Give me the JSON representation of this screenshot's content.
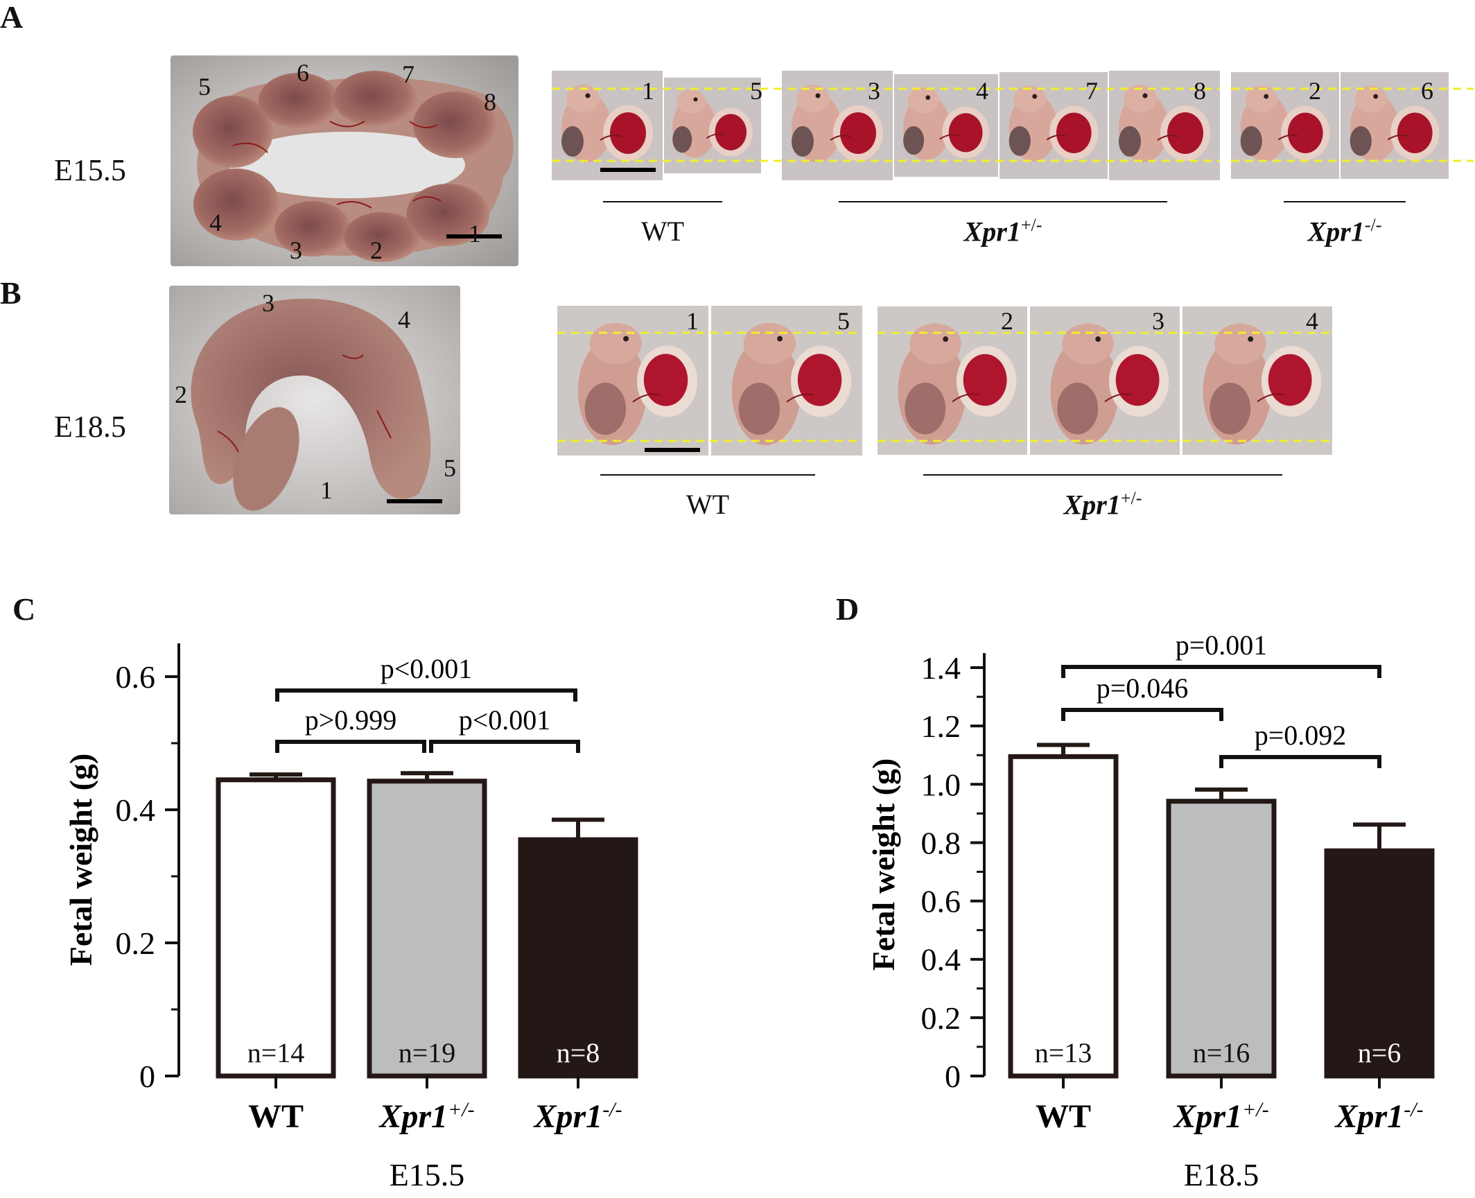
{
  "panelA": {
    "letter": "A",
    "stage": "E15.5",
    "uterus_labels": [
      "5",
      "6",
      "7",
      "8",
      "4",
      "3",
      "2",
      "1"
    ],
    "embryos": [
      "1",
      "5",
      "3",
      "4",
      "7",
      "8",
      "2",
      "6"
    ],
    "groups": [
      {
        "gene": "WT",
        "sup": ""
      },
      {
        "gene": "Xpr1",
        "sup": "+/-"
      },
      {
        "gene": "Xpr1",
        "sup": "-/-"
      }
    ]
  },
  "panelB": {
    "letter": "B",
    "stage": "E18.5",
    "uterus_labels": [
      "3",
      "4",
      "2",
      "1",
      "5"
    ],
    "embryos": [
      "1",
      "5",
      "2",
      "3",
      "4"
    ],
    "groups": [
      {
        "gene": "WT",
        "sup": ""
      },
      {
        "gene": "Xpr1",
        "sup": "+/-"
      }
    ]
  },
  "chart_data": [
    {
      "panel": "C",
      "type": "bar",
      "ylabel": "Fetal weight (g)",
      "xlabel": "E15.5",
      "categories": [
        "WT",
        "Xpr1+/-",
        "Xpr1-/-"
      ],
      "category_parts": [
        {
          "main": "WT",
          "sup": ""
        },
        {
          "main": "Xpr1",
          "sup": "+/-"
        },
        {
          "main": "Xpr1",
          "sup": "-/-"
        }
      ],
      "values": [
        0.445,
        0.443,
        0.355
      ],
      "errors": [
        0.008,
        0.012,
        0.03
      ],
      "n_labels": [
        "n=14",
        "n=19",
        "n=8"
      ],
      "fills": [
        "#ffffff",
        "#bcbdbf",
        "#231815"
      ],
      "ylim": [
        0,
        0.65
      ],
      "yticks": [
        0,
        0.2,
        0.4,
        0.6
      ],
      "ytick_labels": [
        "0",
        "0.2",
        "0.4",
        "0.6"
      ],
      "comparisons": [
        {
          "from": 0,
          "to": 1,
          "label": "p>0.999"
        },
        {
          "from": 1,
          "to": 2,
          "label": "p<0.001"
        },
        {
          "from": 0,
          "to": 2,
          "label": "p<0.001"
        }
      ]
    },
    {
      "panel": "D",
      "type": "bar",
      "ylabel": "Fetal weight (g)",
      "xlabel": "E18.5",
      "categories": [
        "WT",
        "Xpr1+/-",
        "Xpr1-/-"
      ],
      "category_parts": [
        {
          "main": "WT",
          "sup": ""
        },
        {
          "main": "Xpr1",
          "sup": "+/-"
        },
        {
          "main": "Xpr1",
          "sup": "-/-"
        }
      ],
      "values": [
        1.095,
        0.942,
        0.772
      ],
      "errors": [
        0.04,
        0.04,
        0.09
      ],
      "n_labels": [
        "n=13",
        "n=16",
        "n=6"
      ],
      "fills": [
        "#ffffff",
        "#bcbdbf",
        "#231815"
      ],
      "ylim": [
        0,
        1.45
      ],
      "yticks": [
        0,
        0.2,
        0.4,
        0.6,
        0.8,
        1.0,
        1.2,
        1.4
      ],
      "ytick_labels": [
        "0",
        "0.2",
        "0.4",
        "0.6",
        "0.8",
        "1.0",
        "1.2",
        "1.4"
      ],
      "comparisons": [
        {
          "from": 0,
          "to": 1,
          "label": "p=0.046"
        },
        {
          "from": 1,
          "to": 2,
          "label": "p=0.092"
        },
        {
          "from": 0,
          "to": 2,
          "label": "p=0.001"
        }
      ]
    }
  ]
}
